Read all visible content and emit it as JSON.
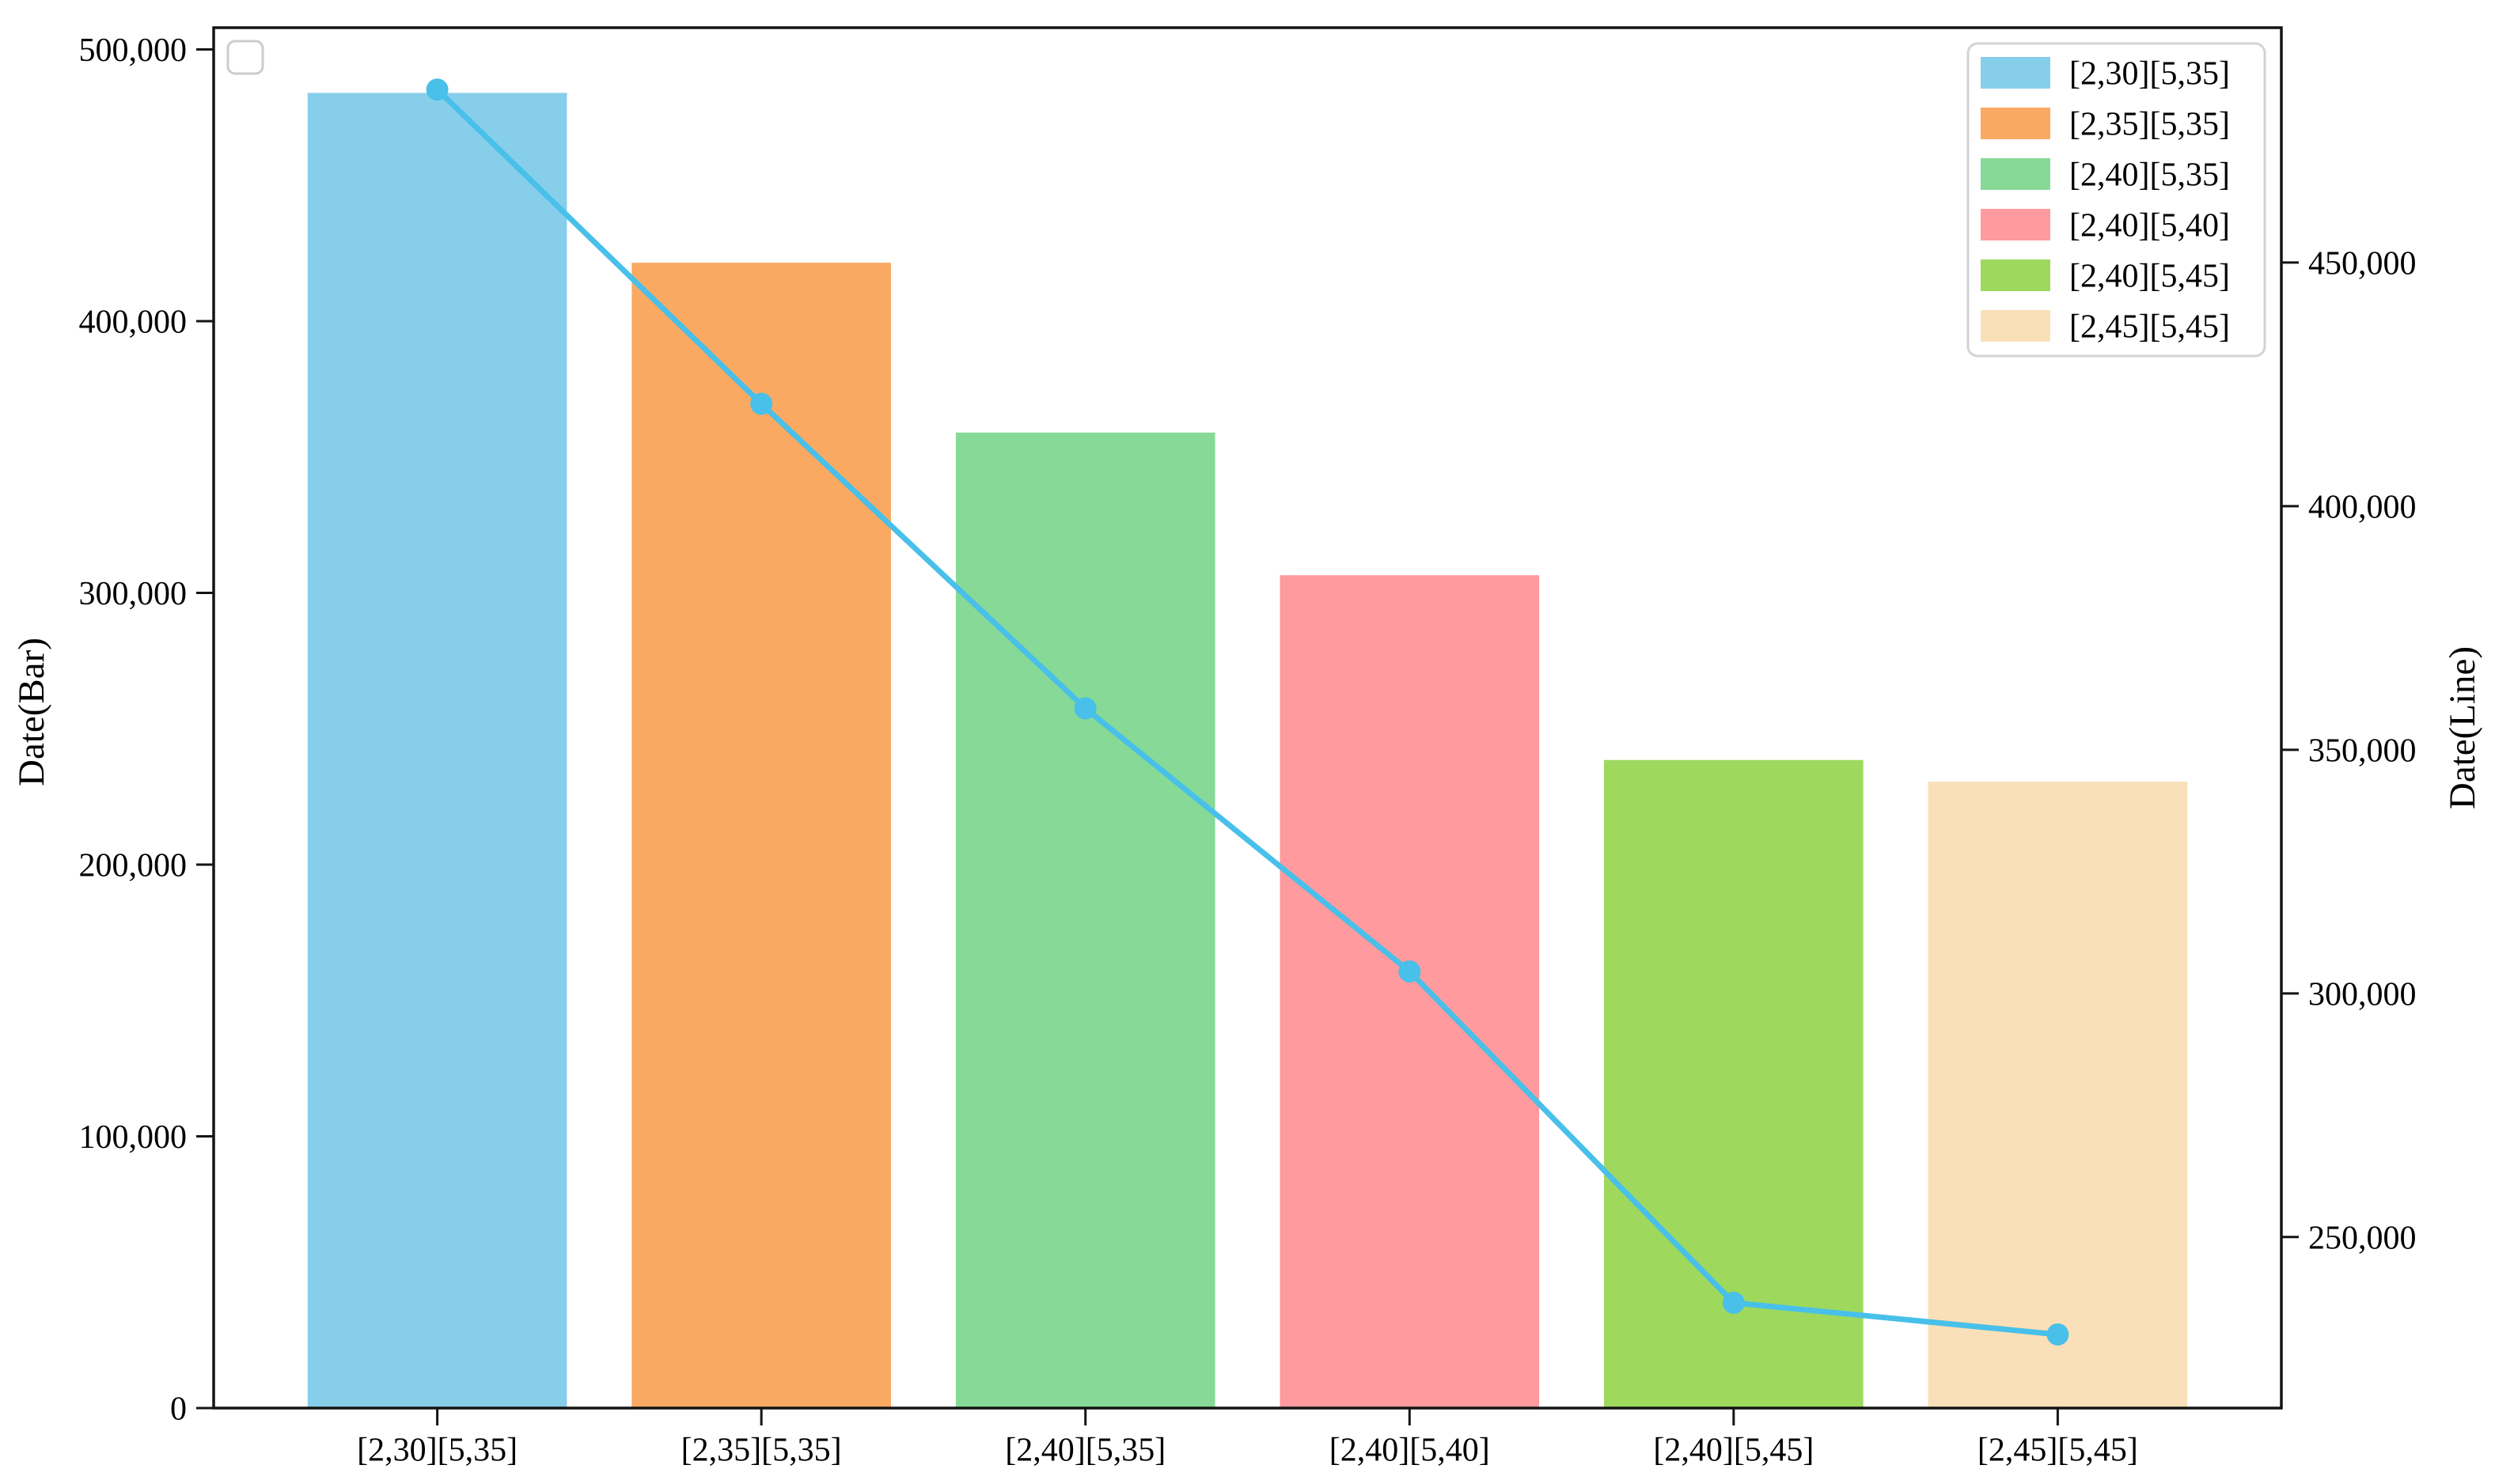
{
  "figure": {
    "background": "#ffffff",
    "left_axis_title": "Date(Bar)",
    "right_axis_title": "Date(Line)"
  },
  "chart_data": {
    "type": "bar",
    "title": "",
    "xlabel": "",
    "ylabel_left": "Date(Bar)",
    "ylabel_right": "Date(Line)",
    "categories": [
      "[2,30][5,35]",
      "[2,35][5,35]",
      "[2,40][5,35]",
      "[2,40][5,40]",
      "[2,40][5,45]",
      "[2,45][5,45]"
    ],
    "bar_series": {
      "name": "Date(Bar)",
      "axis": "left",
      "values": [
        484000,
        421500,
        359000,
        306500,
        238500,
        230500
      ],
      "colors": [
        "#87CEEB",
        "#FAA963",
        "#86D996",
        "#FF9A9E",
        "#9ED95E",
        "#FAE0B8"
      ]
    },
    "line_series": {
      "name": "Date(Line)",
      "axis": "right",
      "values": [
        485500,
        421000,
        358500,
        304500,
        236500,
        230000
      ],
      "color": "#48C0E9",
      "marker": "circle"
    },
    "ylim_left": [
      0,
      508000
    ],
    "ylim_right": [
      214900,
      498200
    ],
    "yticks_left": [
      0,
      100000,
      200000,
      300000,
      400000,
      500000
    ],
    "yticks_right": [
      250000,
      300000,
      350000,
      400000,
      450000
    ],
    "grid": false,
    "axis_color": "#141414",
    "tick_label_color": "#000000",
    "tick_label_format": "comma",
    "legend": {
      "position": "upper right",
      "entries": [
        {
          "label": "[2,30][5,35]",
          "color": "#87CEEB"
        },
        {
          "label": "[2,35][5,35]",
          "color": "#FAA963"
        },
        {
          "label": "[2,40][5,35]",
          "color": "#86D996"
        },
        {
          "label": "[2,40][5,40]",
          "color": "#FF9A9E"
        },
        {
          "label": "[2,40][5,45]",
          "color": "#9ED95E"
        },
        {
          "label": "[2,45][5,45]",
          "color": "#FAE0B8"
        }
      ]
    },
    "empty_inner_legend": true
  }
}
